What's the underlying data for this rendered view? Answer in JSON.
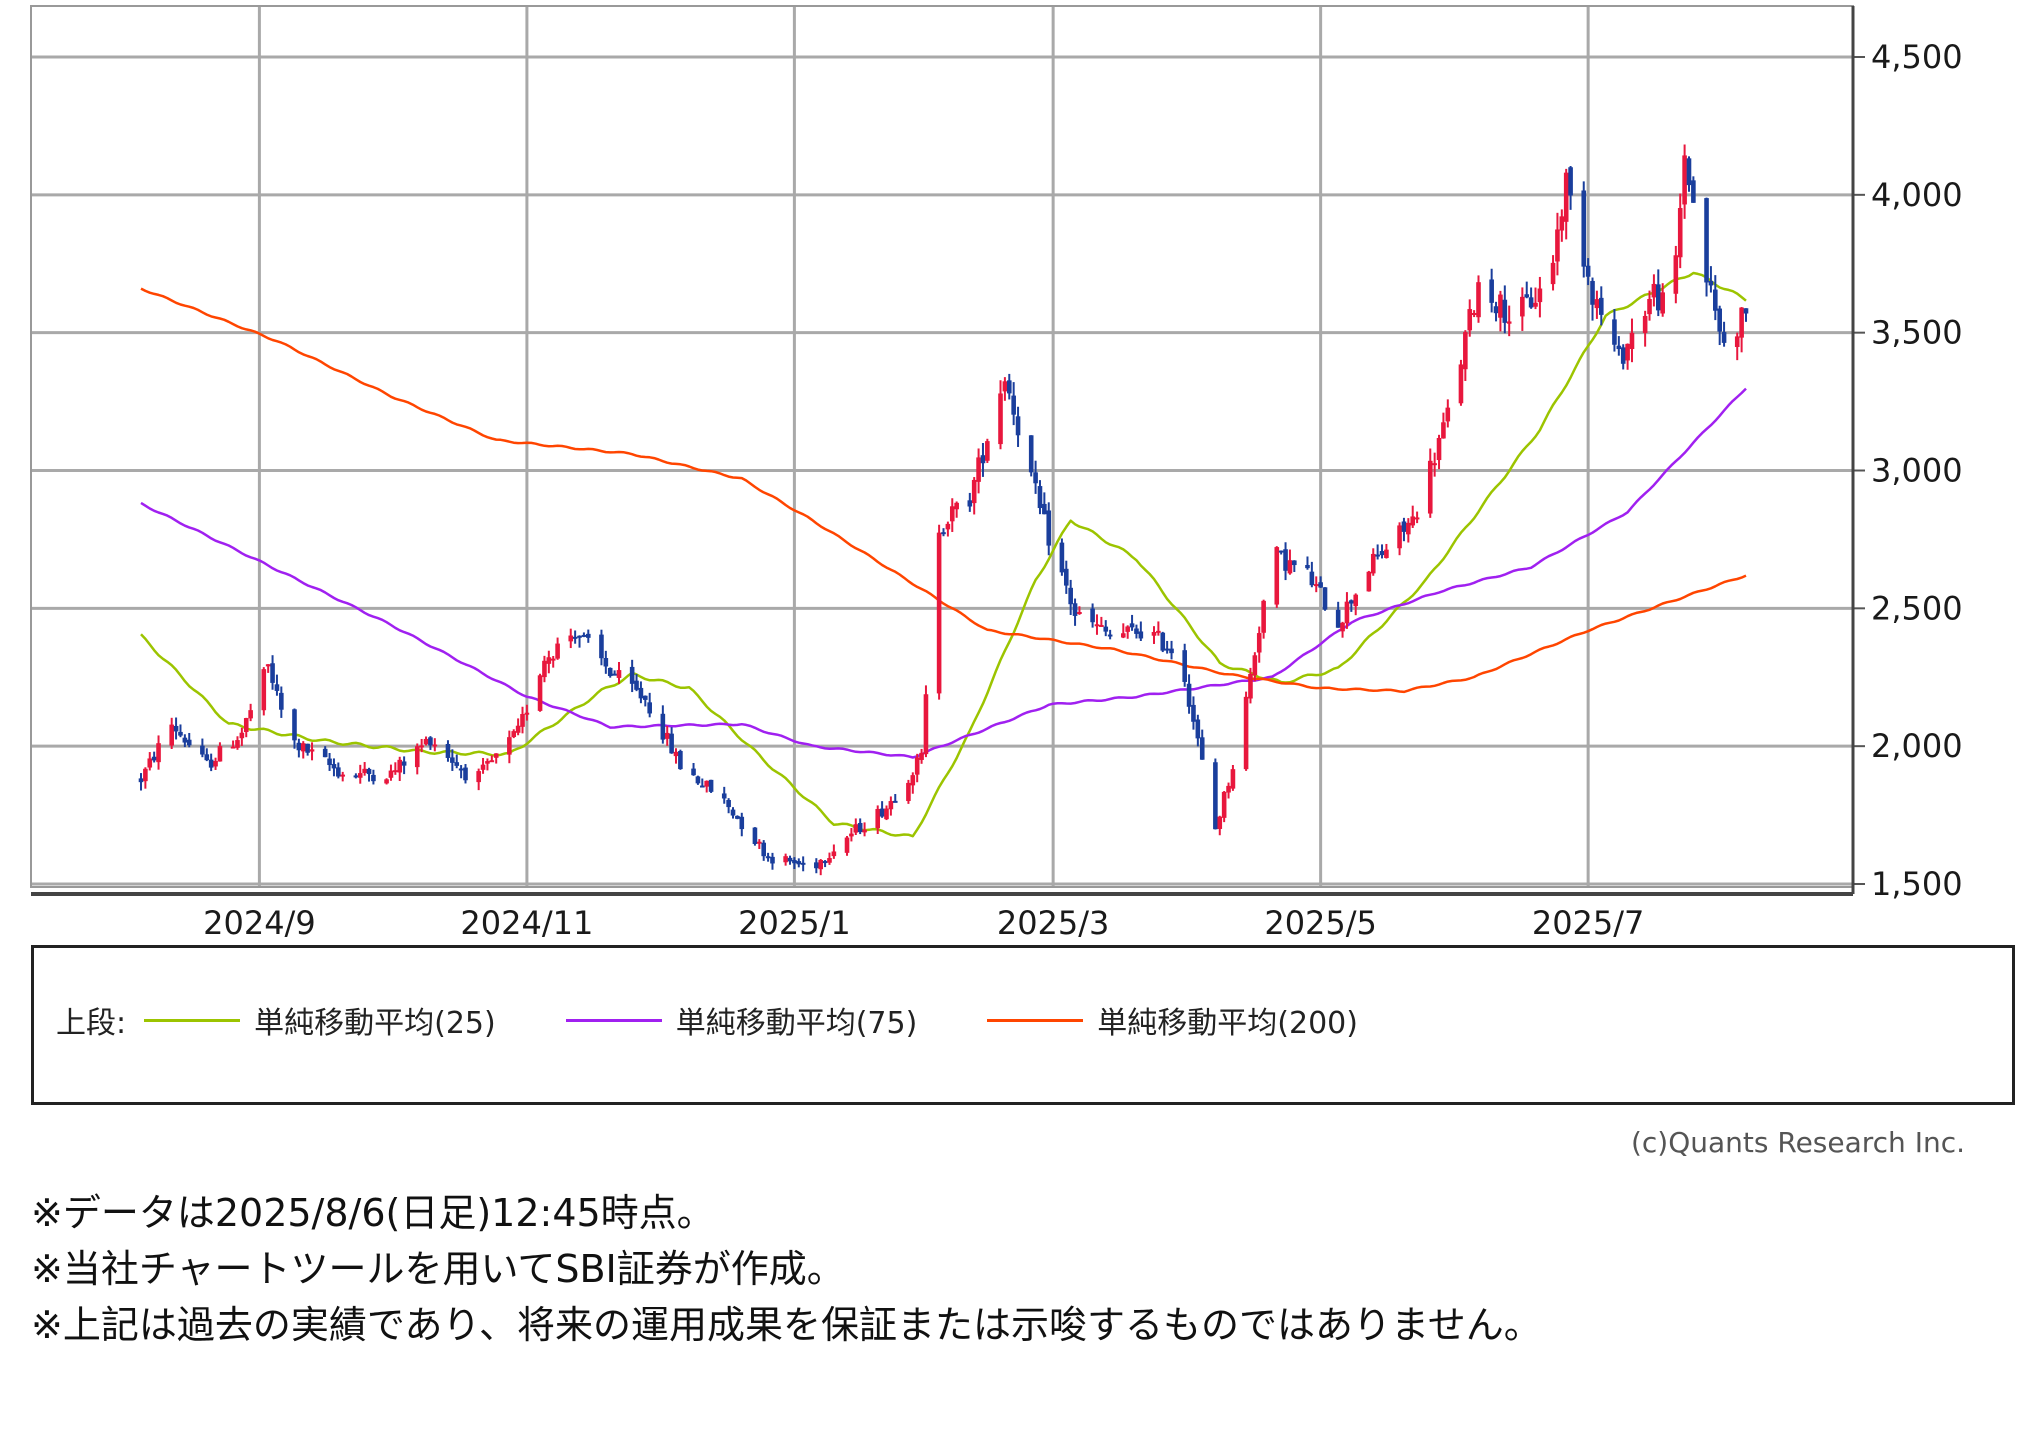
{
  "chart_data": {
    "type": "candlestick",
    "x_labels": [
      "2024/9",
      "2024/11",
      "2025/1",
      "2025/3",
      "2025/5",
      "2025/7"
    ],
    "y_ticks": [
      "4,500",
      "4,000",
      "3,500",
      "3,000",
      "2,500",
      "2,000",
      "1,500"
    ],
    "y_tick_values": [
      4500,
      4000,
      3500,
      3000,
      2500,
      2000,
      1500
    ],
    "ylim": [
      1480,
      4650
    ],
    "x_start": "2024-08-05",
    "x_end": "2025-08-06",
    "grid": true,
    "up_color": "#e8173d",
    "down_color": "#1a3e9c",
    "price_anchors": [
      [
        "2024-08-05",
        1880
      ],
      [
        "2024-08-12",
        2080
      ],
      [
        "2024-08-20",
        1930
      ],
      [
        "2024-08-28",
        2050
      ],
      [
        "2024-09-03",
        2290
      ],
      [
        "2024-09-08",
        2020
      ],
      [
        "2024-09-20",
        1900
      ],
      [
        "2024-10-01",
        1900
      ],
      [
        "2024-10-10",
        2030
      ],
      [
        "2024-10-20",
        1870
      ],
      [
        "2024-10-30",
        2050
      ],
      [
        "2024-11-05",
        2320
      ],
      [
        "2024-11-12",
        2420
      ],
      [
        "2024-11-20",
        2270
      ],
      [
        "2024-11-28",
        2170
      ],
      [
        "2024-12-06",
        1930
      ],
      [
        "2024-12-16",
        1800
      ],
      [
        "2024-12-26",
        1600
      ],
      [
        "2025-01-05",
        1560
      ],
      [
        "2025-01-12",
        1660
      ],
      [
        "2025-01-22",
        1780
      ],
      [
        "2025-01-30",
        1960
      ],
      [
        "2025-02-03",
        2800
      ],
      [
        "2025-02-10",
        2900
      ],
      [
        "2025-02-18",
        3350
      ],
      [
        "2025-02-26",
        2850
      ],
      [
        "2025-03-06",
        2480
      ],
      [
        "2025-03-14",
        2400
      ],
      [
        "2025-03-22",
        2420
      ],
      [
        "2025-03-30",
        2330
      ],
      [
        "2025-04-07",
        1700
      ],
      [
        "2025-04-12",
        1990
      ],
      [
        "2025-04-20",
        2700
      ],
      [
        "2025-04-28",
        2620
      ],
      [
        "2025-05-05",
        2450
      ],
      [
        "2025-05-12",
        2650
      ],
      [
        "2025-05-22",
        2820
      ],
      [
        "2025-05-30",
        3200
      ],
      [
        "2025-06-06",
        3680
      ],
      [
        "2025-06-14",
        3550
      ],
      [
        "2025-06-22",
        3680
      ],
      [
        "2025-06-26",
        4050
      ],
      [
        "2025-07-02",
        3650
      ],
      [
        "2025-07-08",
        3400
      ],
      [
        "2025-07-16",
        3650
      ],
      [
        "2025-07-20",
        3550
      ],
      [
        "2025-07-23",
        4150
      ],
      [
        "2025-07-28",
        3700
      ],
      [
        "2025-08-01",
        3450
      ],
      [
        "2025-08-06",
        3580
      ]
    ],
    "series": [
      {
        "name": "単純移動平均(25)",
        "color": "#9cc400",
        "points": [
          [
            "2024-08-05",
            2400
          ],
          [
            "2024-08-25",
            2080
          ],
          [
            "2024-09-15",
            2020
          ],
          [
            "2024-10-08",
            1980
          ],
          [
            "2024-10-28",
            1970
          ],
          [
            "2024-11-18",
            2200
          ],
          [
            "2024-11-25",
            2260
          ],
          [
            "2024-12-08",
            2210
          ],
          [
            "2024-12-25",
            1950
          ],
          [
            "2025-01-10",
            1720
          ],
          [
            "2025-01-28",
            1670
          ],
          [
            "2025-02-10",
            2050
          ],
          [
            "2025-02-25",
            2600
          ],
          [
            "2025-03-05",
            2820
          ],
          [
            "2025-03-20",
            2680
          ],
          [
            "2025-04-08",
            2300
          ],
          [
            "2025-04-22",
            2230
          ],
          [
            "2025-05-05",
            2280
          ],
          [
            "2025-05-25",
            2600
          ],
          [
            "2025-06-20",
            3150
          ],
          [
            "2025-07-05",
            3560
          ],
          [
            "2025-07-25",
            3720
          ],
          [
            "2025-08-06",
            3620
          ]
        ]
      },
      {
        "name": "単純移動平均(75)",
        "color": "#a020f0",
        "points": [
          [
            "2024-08-05",
            2880
          ],
          [
            "2024-09-05",
            2640
          ],
          [
            "2024-10-01",
            2440
          ],
          [
            "2024-11-01",
            2180
          ],
          [
            "2024-11-20",
            2070
          ],
          [
            "2024-12-20",
            2080
          ],
          [
            "2025-01-05",
            2000
          ],
          [
            "2025-01-28",
            1960
          ],
          [
            "2025-02-28",
            2150
          ],
          [
            "2025-03-20",
            2180
          ],
          [
            "2025-04-20",
            2250
          ],
          [
            "2025-05-08",
            2450
          ],
          [
            "2025-05-28",
            2560
          ],
          [
            "2025-06-18",
            2650
          ],
          [
            "2025-07-10",
            2850
          ],
          [
            "2025-08-06",
            3300
          ]
        ]
      },
      {
        "name": "単純移動平均(200)",
        "color": "#ff4500",
        "points": [
          [
            "2024-08-05",
            3660
          ],
          [
            "2024-09-05",
            3470
          ],
          [
            "2024-10-01",
            3270
          ],
          [
            "2024-10-25",
            3110
          ],
          [
            "2024-11-25",
            3060
          ],
          [
            "2024-12-20",
            2970
          ],
          [
            "2025-01-05",
            2820
          ],
          [
            "2025-01-25",
            2620
          ],
          [
            "2025-02-14",
            2420
          ],
          [
            "2025-03-15",
            2350
          ],
          [
            "2025-04-10",
            2260
          ],
          [
            "2025-05-01",
            2210
          ],
          [
            "2025-05-20",
            2200
          ],
          [
            "2025-06-05",
            2250
          ],
          [
            "2025-07-01",
            2420
          ],
          [
            "2025-08-06",
            2620
          ]
        ]
      }
    ]
  },
  "legend": {
    "prefix": "上段:",
    "items": [
      {
        "label": "単純移動平均(25)",
        "color": "#9cc400"
      },
      {
        "label": "単純移動平均(75)",
        "color": "#a020f0"
      },
      {
        "label": "単純移動平均(200)",
        "color": "#ff4500"
      }
    ]
  },
  "copyright": "(c)Quants Research Inc.",
  "notes": [
    "※データは2025/8/6(日足)12:45時点。",
    "※当社チャートツールを用いてSBI証券が作成。",
    "※上記は過去の実績であり、将来の運用成果を保証または示唆するものではありません。"
  ]
}
